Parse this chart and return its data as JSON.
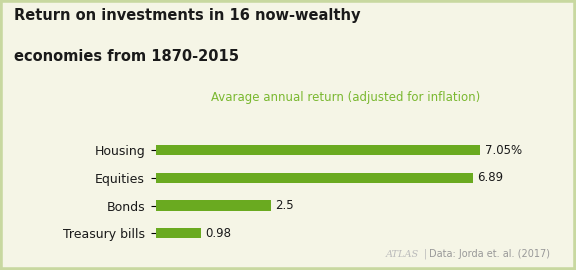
{
  "title_line1": "Return on investments in 16 now-wealthy",
  "title_line2": "economies from 1870-2015",
  "subtitle": "Avarage annual return (adjusted for inflation)",
  "categories": [
    "Housing",
    "Equities",
    "Bonds",
    "Treasury bills"
  ],
  "values": [
    7.05,
    6.89,
    2.5,
    0.98
  ],
  "labels": [
    "7.05%",
    "6.89",
    "2.5",
    "0.98"
  ],
  "bar_color": "#6aaa20",
  "background_color": "#f5f5e6",
  "border_color": "#c8d8a0",
  "title_color": "#1a1a1a",
  "subtitle_color": "#7ab830",
  "category_color": "#1a1a1a",
  "value_color": "#1a1a1a",
  "attribution": "ATLAS",
  "source": "Data: Jorda et. al. (2017)",
  "xlim": [
    0,
    8.5
  ],
  "bar_height": 0.38
}
